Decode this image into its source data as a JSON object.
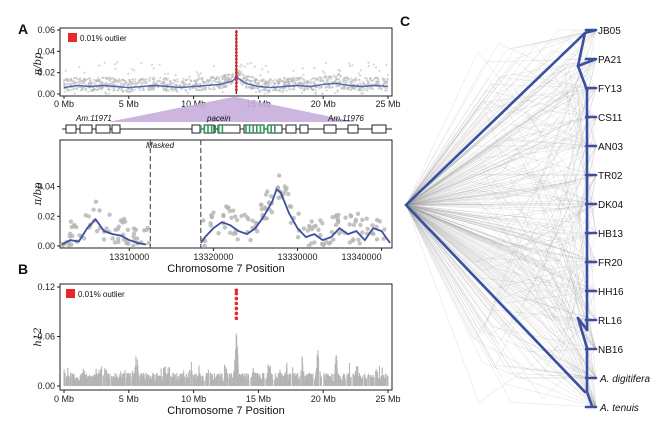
{
  "panels": {
    "a_label": "A",
    "b_label": "B",
    "c_label": "C"
  },
  "colors": {
    "blue": "#3a4fa0",
    "grey_point": "#b4b4b4",
    "outlier_red": "#e8262b",
    "lavender": "#c7aedb",
    "exon_green": "#2e9e58",
    "frame": "#222222"
  },
  "chart_data": [
    {
      "type": "scatter",
      "id": "panel-a-top",
      "ylabel": "π/bp",
      "xlabel": "",
      "x_unit": "Mb",
      "xlim": [
        0,
        25
      ],
      "ylim": [
        0,
        0.06
      ],
      "xticks": [
        "0 Mb",
        "5 Mb",
        "10 Mb",
        "15 Mb",
        "20 Mb",
        "25 Mb"
      ],
      "xtick_values": [
        0,
        5,
        10,
        15,
        20,
        25
      ],
      "yticks": [
        "0.00",
        "0.02",
        "0.04",
        "0.06"
      ],
      "ytick_values": [
        0,
        0.02,
        0.04,
        0.06
      ],
      "legend": "0.01% outlier",
      "outlier_x": 13.3,
      "series": [
        {
          "kind": "smooth",
          "x": [
            0,
            1,
            2,
            3,
            4,
            5,
            6,
            7,
            8,
            9,
            10,
            11,
            12,
            13,
            13.3,
            14,
            15,
            16,
            17,
            18,
            19,
            20,
            21,
            22,
            23,
            24,
            25
          ],
          "y": [
            0.006,
            0.008,
            0.007,
            0.008,
            0.007,
            0.006,
            0.007,
            0.008,
            0.007,
            0.006,
            0.007,
            0.008,
            0.009,
            0.012,
            0.016,
            0.01,
            0.007,
            0.006,
            0.007,
            0.008,
            0.007,
            0.009,
            0.01,
            0.008,
            0.007,
            0.008,
            0.007
          ]
        }
      ]
    },
    {
      "type": "line",
      "id": "panel-a-zoom",
      "ylabel": "π/bp",
      "xlabel": "Chromosome 7 Position",
      "xlim": [
        13302000,
        13341000
      ],
      "ylim": [
        0,
        0.07
      ],
      "xticks": [
        "13310000",
        "13320000",
        "13330000",
        "13340000"
      ],
      "xtick_values": [
        13310000,
        13320000,
        13330000,
        13340000
      ],
      "yticks": [
        "0.00",
        "0.02",
        "0.04"
      ],
      "ytick_values": [
        0,
        0.02,
        0.04
      ],
      "masked_label": "Masked",
      "masked_range": [
        13312500,
        13318500
      ],
      "genes": [
        "Am.11971",
        "pacein",
        "Am.11976"
      ],
      "x": [
        13302000,
        13303000,
        13304000,
        13305000,
        13306000,
        13307000,
        13308000,
        13309000,
        13310000,
        13311000,
        13312000,
        13318500,
        13319000,
        13320000,
        13321000,
        13322000,
        13323000,
        13324000,
        13325000,
        13326000,
        13327000,
        13327500,
        13328000,
        13329000,
        13330000,
        13331000,
        13332000,
        13333000,
        13334000,
        13335000,
        13336000,
        13337000,
        13338000,
        13339000,
        13340000,
        13341000
      ],
      "y": [
        0.001,
        0.004,
        0.003,
        0.012,
        0.018,
        0.01,
        0.008,
        0.007,
        0.004,
        0.002,
        0.001,
        0.002,
        0.006,
        0.012,
        0.016,
        0.014,
        0.01,
        0.008,
        0.012,
        0.02,
        0.03,
        0.038,
        0.036,
        0.022,
        0.012,
        0.006,
        0.008,
        0.004,
        0.006,
        0.012,
        0.008,
        0.01,
        0.004,
        0.012,
        0.01,
        0.002
      ]
    },
    {
      "type": "scatter",
      "id": "panel-b",
      "ylabel": "h12",
      "xlabel": "Chromosome 7 Position",
      "xlim": [
        0,
        25
      ],
      "ylim": [
        0,
        0.12
      ],
      "xticks": [
        "0 Mb",
        "5 Mb",
        "10 Mb",
        "15 Mb",
        "20 Mb",
        "25 Mb"
      ],
      "xtick_values": [
        0,
        5,
        10,
        15,
        20,
        25
      ],
      "yticks": [
        "0.00",
        "0.06",
        "0.12"
      ],
      "ytick_values": [
        0,
        0.06,
        0.12
      ],
      "legend": "0.01% outlier",
      "outlier_x": 13.3,
      "outlier_y": [
        0.082,
        0.088,
        0.094,
        0.1,
        0.106,
        0.112,
        0.116
      ],
      "peaks": [
        {
          "x": 1.5,
          "y": 0.028
        },
        {
          "x": 3.2,
          "y": 0.034
        },
        {
          "x": 5.6,
          "y": 0.046
        },
        {
          "x": 7.8,
          "y": 0.026
        },
        {
          "x": 9.8,
          "y": 0.033
        },
        {
          "x": 11.2,
          "y": 0.03
        },
        {
          "x": 13.3,
          "y": 0.07
        },
        {
          "x": 14.6,
          "y": 0.024
        },
        {
          "x": 15.8,
          "y": 0.036
        },
        {
          "x": 17.2,
          "y": 0.03
        },
        {
          "x": 18.4,
          "y": 0.04
        },
        {
          "x": 19.6,
          "y": 0.056
        },
        {
          "x": 21.0,
          "y": 0.046
        },
        {
          "x": 22.6,
          "y": 0.034
        },
        {
          "x": 24.1,
          "y": 0.024
        }
      ]
    }
  ],
  "tree": {
    "leaves": [
      "JB05",
      "PA21",
      "FY13",
      "CS11",
      "AN03",
      "TR02",
      "DK04",
      "HB13",
      "FR20",
      "HH16",
      "RL16",
      "NB16",
      "A. digitifera",
      "A. tenuis"
    ],
    "italic_leaves": [
      "A. digitifera",
      "A. tenuis"
    ]
  }
}
